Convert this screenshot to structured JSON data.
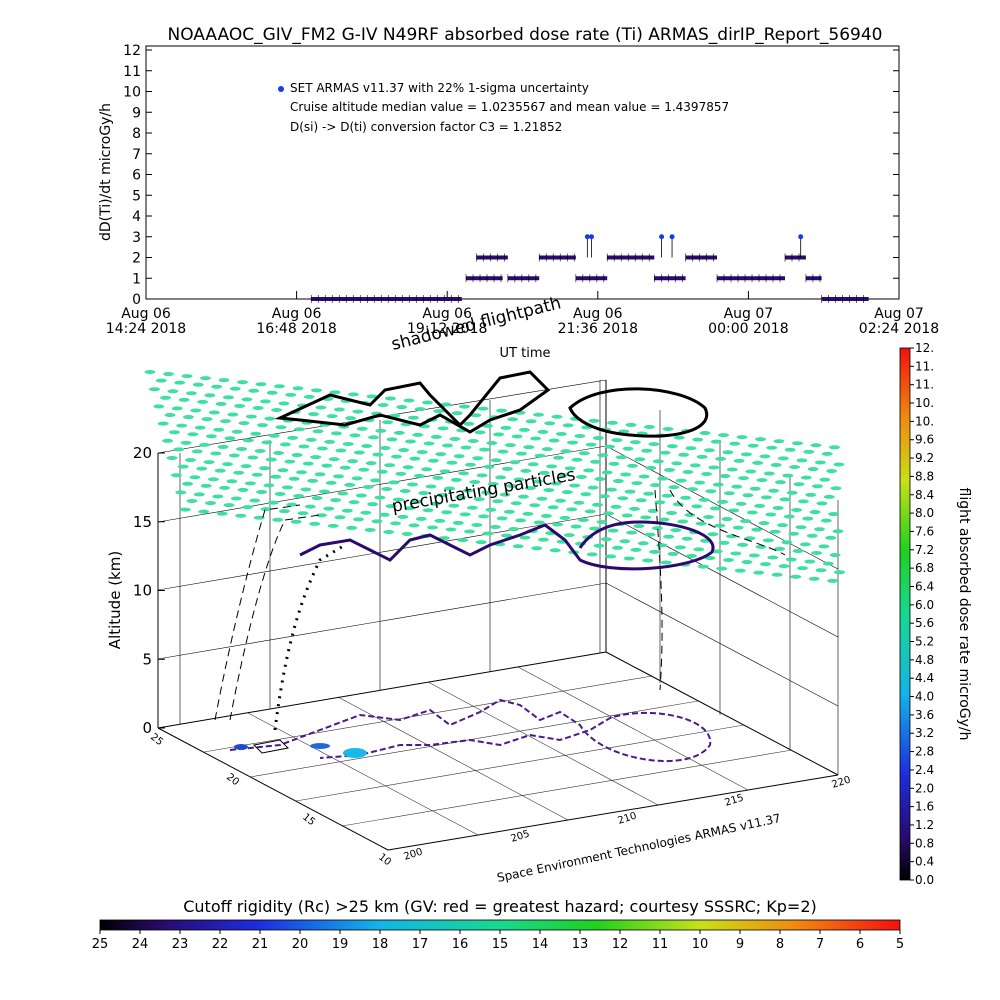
{
  "title": "NOAAAOC_GIV_FM2 G-IV    N49RF  absorbed dose rate (Ti) ARMAS_dirIP_Report_56940",
  "top_chart": {
    "legend_line1": "SET ARMAS v11.37 with 22% 1-sigma uncertainty",
    "legend_line2": "Cruise altitude median value = 1.0235567 and mean value = 1.4397857",
    "legend_line3": "D(si) -> D(ti) conversion factor C3 = 1.21852",
    "ylabel": "dD(Ti)/dt microGy/h",
    "xlabel": "UT time",
    "colors": {
      "points": "#2a0a6e",
      "high_points": "#1c3adf",
      "errorbar": "#000000"
    }
  },
  "chart_data": [
    {
      "type": "scatter",
      "title": "NOAAAOC_GIV_FM2 G-IV    N49RF  absorbed dose rate (Ti) ARMAS_dirIP_Report_56940",
      "xlabel": "UT time",
      "ylabel": "dD(Ti)/dt microGy/h",
      "xlim": [
        "2018-08-06 14:24",
        "2018-08-07 02:24"
      ],
      "ylim": [
        0,
        12
      ],
      "yticks": [
        0,
        1,
        2,
        3,
        4,
        5,
        6,
        7,
        8,
        9,
        10,
        11,
        12
      ],
      "xtick_labels": [
        [
          "Aug 06",
          "14:24 2018"
        ],
        [
          "Aug 06",
          "16:48 2018"
        ],
        [
          "Aug 06",
          "19:12 2018"
        ],
        [
          "Aug 06",
          "21:36 2018"
        ],
        [
          "Aug 07",
          "00:00 2018"
        ],
        [
          "Aug 07",
          "02:24 2018"
        ]
      ],
      "series": [
        {
          "name": "SET ARMAS v11.37 with 22% 1-sigma uncertainty",
          "segments": [
            {
              "start": "2018-08-06 17:02",
              "end": "2018-08-06 19:26",
              "value": 0
            },
            {
              "start": "2018-08-06 19:30",
              "end": "2018-08-06 20:05",
              "value": 1
            },
            {
              "start": "2018-08-06 19:40",
              "end": "2018-08-06 20:10",
              "value": 2
            },
            {
              "start": "2018-08-06 20:10",
              "end": "2018-08-06 20:40",
              "value": 1
            },
            {
              "start": "2018-08-06 20:40",
              "end": "2018-08-06 21:15",
              "value": 2
            },
            {
              "start": "2018-08-06 21:15",
              "end": "2018-08-06 21:45",
              "value": 1
            },
            {
              "start": "2018-08-06 21:45",
              "end": "2018-08-06 22:30",
              "value": 2
            },
            {
              "start": "2018-08-06 22:30",
              "end": "2018-08-06 23:00",
              "value": 1
            },
            {
              "start": "2018-08-06 23:00",
              "end": "2018-08-06 23:30",
              "value": 2
            },
            {
              "start": "2018-08-06 23:30",
              "end": "2018-08-07 00:35",
              "value": 1
            },
            {
              "start": "2018-08-07 00:35",
              "end": "2018-08-07 00:55",
              "value": 2
            },
            {
              "start": "2018-08-07 00:55",
              "end": "2018-08-07 01:10",
              "value": 1
            },
            {
              "start": "2018-08-07 01:10",
              "end": "2018-08-07 01:55",
              "value": 0
            }
          ],
          "peaks": [
            {
              "x": "2018-08-06 21:26",
              "y": 3
            },
            {
              "x": "2018-08-06 21:30",
              "y": 3
            },
            {
              "x": "2018-08-06 22:37",
              "y": 3
            },
            {
              "x": "2018-08-06 22:47",
              "y": 3
            },
            {
              "x": "2018-08-07 00:50",
              "y": 3
            }
          ]
        }
      ],
      "annotations": [
        "Cruise altitude median value = 1.0235567 and mean value = 1.4397857",
        "D(si) -> D(ti) conversion factor C3 = 1.21852"
      ]
    },
    {
      "type": "3d-flightpath",
      "zlabel": "Altitude (km)",
      "zticks": [
        0,
        5,
        10,
        15,
        20
      ],
      "lat_ticks": [
        "25",
        "20",
        "15",
        "10"
      ],
      "lon_ticks": [
        "200",
        "205",
        "210",
        "215",
        "220"
      ],
      "colorbar_label": "flight absorbed dose rate microGy/h",
      "colorbar_ticks": [
        "0.0",
        "0.4",
        "0.8",
        "1.2",
        "1.6",
        "2.0",
        "2.4",
        "2.8",
        "3.2",
        "3.6",
        "4.0",
        "4.4",
        "4.8",
        "5.2",
        "5.6",
        "6.0",
        "6.4",
        "6.8",
        "7.2",
        "7.6",
        "8.0",
        "8.4",
        "8.8",
        "9.2",
        "9.6",
        "10.",
        "10.",
        "11.",
        "11.",
        "12."
      ],
      "rigidity_label": "Cutoff rigidity (Rc) >25 km (GV: red = greatest hazard; courtesy SSSRC; Kp=2)",
      "rigidity_ticks": [
        "25",
        "24",
        "23",
        "22",
        "21",
        "20",
        "19",
        "18",
        "17",
        "16",
        "15",
        "14",
        "13",
        "12",
        "11",
        "10",
        "9",
        "8",
        "7",
        "6",
        "5"
      ]
    }
  ],
  "scene": {
    "shadowed_label": "shadowed flightpath",
    "particles_label": "precipitating particles",
    "credit": "Space Environment Technologies ARMAS v11.37",
    "zlabel": "Altitude (km)",
    "colors": {
      "particle": "#3ee0a0",
      "path": "#000000",
      "path_low": "#4b1a8c"
    }
  },
  "colorbar": {
    "label": "flight absorbed dose rate microGy/h",
    "ticks": [
      "0.0",
      "0.4",
      "0.8",
      "1.2",
      "1.6",
      "2.0",
      "2.4",
      "2.8",
      "3.2",
      "3.6",
      "4.0",
      "4.4",
      "4.8",
      "5.2",
      "5.6",
      "6.0",
      "6.4",
      "6.8",
      "7.2",
      "7.6",
      "8.0",
      "8.4",
      "8.8",
      "9.2",
      "9.6",
      "10.",
      "10.",
      "11.",
      "11.",
      "12."
    ]
  },
  "rigidity_bar": {
    "label": "Cutoff rigidity (Rc) >25 km (GV: red = greatest hazard; courtesy SSSRC; Kp=2)",
    "ticks": [
      "25",
      "24",
      "23",
      "22",
      "21",
      "20",
      "19",
      "18",
      "17",
      "16",
      "15",
      "14",
      "13",
      "12",
      "11",
      "10",
      "9",
      "8",
      "7",
      "6",
      "5"
    ]
  }
}
